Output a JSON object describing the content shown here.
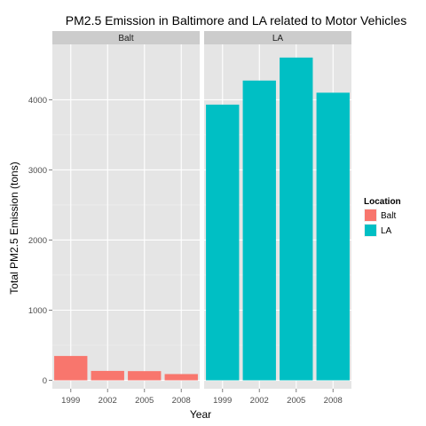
{
  "chart_data": {
    "type": "bar",
    "title": "PM2.5 Emission in Baltimore and LA related to Motor Vehicles",
    "xlabel": "Year",
    "ylabel": "Total PM2.5 Emission (tons)",
    "categories": [
      "1999",
      "2002",
      "2005",
      "2008"
    ],
    "ylim": [
      -120,
      4790
    ],
    "yticks": [
      0,
      1000,
      2000,
      3000,
      4000
    ],
    "grid": true,
    "facets": [
      {
        "label": "Balt",
        "series": "Balt",
        "values": [
          347,
          134,
          131,
          89
        ]
      },
      {
        "label": "LA",
        "series": "LA",
        "values": [
          3931,
          4274,
          4602,
          4101
        ]
      }
    ],
    "legend": {
      "title": "Location",
      "placement": "right",
      "entries": [
        {
          "label": "Balt",
          "color": "#F8766D"
        },
        {
          "label": "LA",
          "color": "#00BFC4"
        }
      ]
    },
    "colors": {
      "panel_bg": "#e5e5e5",
      "grid_major": "#ffffff",
      "grid_minor": "#f2f2f2",
      "strip_bg": "#cccccc"
    }
  }
}
